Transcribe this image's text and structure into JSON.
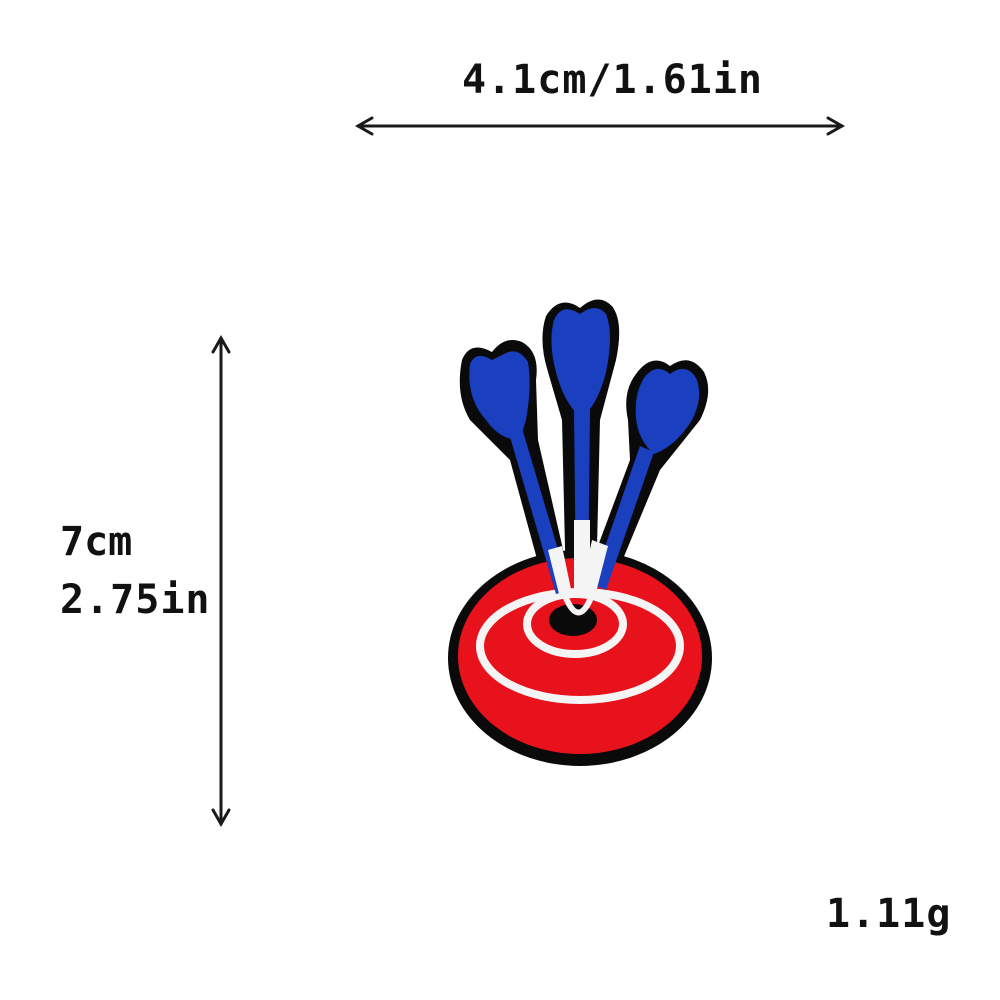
{
  "dimensions": {
    "width_label": "4.1cm/1.61in",
    "height_cm_label": "7cm",
    "height_in_label": "2.75in",
    "weight_label": "1.11g"
  },
  "colors": {
    "dart_blue": "#1a3fbf",
    "target_red": "#e8121c",
    "stitch_white": "#f4f4f4",
    "outline_black": "#0a0a0a",
    "arrow_line": "#1a1a1a"
  },
  "icons": {
    "patch": "dartboard-with-three-darts-patch",
    "width_arrow": "horizontal-double-arrow",
    "height_arrow": "vertical-double-arrow"
  }
}
